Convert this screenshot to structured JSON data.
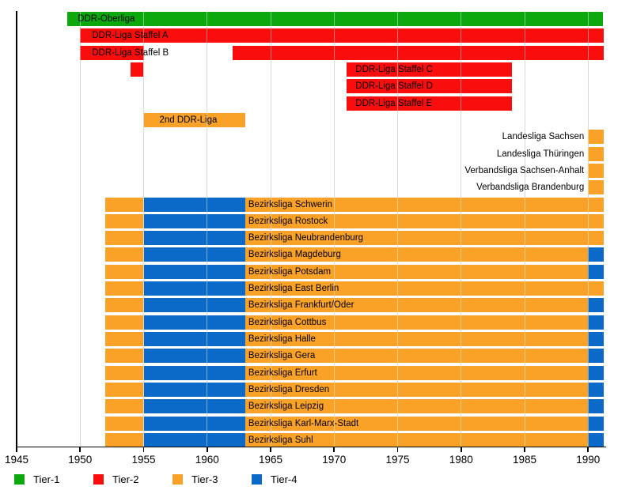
{
  "colors": {
    "tier1": "#0CA80C",
    "tier2": "#F90D0D",
    "tier3": "#F9A227",
    "tier4": "#0B69C8",
    "gridline": "#BBBBBB",
    "gridline_over_bars": "rgba(255,255,255,0.45)",
    "axis": "#000000",
    "text": "#000000"
  },
  "chart_data": {
    "type": "timeline-bar",
    "title": "",
    "x_axis": {
      "min": 1945,
      "max": 1991.3,
      "ticks": [
        1945,
        1950,
        1955,
        1960,
        1965,
        1970,
        1975,
        1980,
        1985,
        1990
      ]
    },
    "grid": "vertical-5yr",
    "rows": [
      {
        "label": "DDR-Oberliga",
        "label_pos": "on-bar",
        "label_segment": 0,
        "label_pad": 13,
        "segments": [
          {
            "from": 1949,
            "to": 1991.2,
            "tier": "tier1"
          }
        ]
      },
      {
        "label": "DDR-Liga Staffel A",
        "label_pos": "on-bar",
        "label_segment": 0,
        "label_pad": 15,
        "segments": [
          {
            "from": 1950,
            "to": 1991.2,
            "tier": "tier2"
          }
        ]
      },
      {
        "label": "DDR-Liga Staffel B",
        "label_pos": "on-bar",
        "label_segment": 0,
        "label_pad": 15,
        "segments": [
          {
            "from": 1950,
            "to": 1955,
            "tier": "tier2"
          },
          {
            "from": 1962,
            "to": 1991.2,
            "tier": "tier2"
          }
        ]
      },
      {
        "label": "DDR-Liga Staffel C",
        "label_pos": "on-bar",
        "label_segment": 1,
        "label_pad": 11,
        "segments": [
          {
            "from": 1954,
            "to": 1955,
            "tier": "tier2"
          },
          {
            "from": 1971,
            "to": 1984,
            "tier": "tier2"
          }
        ]
      },
      {
        "label": "DDR-Liga Staffel D",
        "label_pos": "on-bar",
        "label_segment": 0,
        "label_pad": 11,
        "segments": [
          {
            "from": 1971,
            "to": 1984,
            "tier": "tier2"
          }
        ]
      },
      {
        "label": "DDR-Liga Staffel E",
        "label_pos": "on-bar",
        "label_segment": 0,
        "label_pad": 11,
        "segments": [
          {
            "from": 1971,
            "to": 1984,
            "tier": "tier2"
          }
        ]
      },
      {
        "label": "2nd DDR-Liga",
        "label_pos": "on-bar",
        "label_segment": 0,
        "label_pad": 20,
        "segments": [
          {
            "from": 1955,
            "to": 1963,
            "tier": "tier3"
          }
        ]
      },
      {
        "label": "Landesliga Sachsen",
        "label_pos": "before-bar",
        "label_segment": 0,
        "segments": [
          {
            "from": 1990,
            "to": 1991.2,
            "tier": "tier3"
          }
        ]
      },
      {
        "label": "Landesliga Thüringen",
        "label_pos": "before-bar",
        "label_segment": 0,
        "segments": [
          {
            "from": 1990,
            "to": 1991.2,
            "tier": "tier3"
          }
        ]
      },
      {
        "label": "Verbandsliga Sachsen-Anhalt",
        "label_pos": "before-bar",
        "label_segment": 0,
        "segments": [
          {
            "from": 1990,
            "to": 1991.2,
            "tier": "tier3"
          }
        ]
      },
      {
        "label": "Verbandsliga Brandenburg",
        "label_pos": "before-bar",
        "label_segment": 0,
        "segments": [
          {
            "from": 1990,
            "to": 1991.2,
            "tier": "tier3"
          }
        ]
      },
      {
        "label": "Bezirksliga Schwerin",
        "label_pos": "on-bar",
        "label_segment": 2,
        "label_pad": 4,
        "segments": [
          {
            "from": 1952,
            "to": 1955,
            "tier": "tier3"
          },
          {
            "from": 1955,
            "to": 1963,
            "tier": "tier4"
          },
          {
            "from": 1963,
            "to": 1991.2,
            "tier": "tier3"
          }
        ]
      },
      {
        "label": "Bezirksliga Rostock",
        "label_pos": "on-bar",
        "label_segment": 2,
        "label_pad": 4,
        "segments": [
          {
            "from": 1952,
            "to": 1955,
            "tier": "tier3"
          },
          {
            "from": 1955,
            "to": 1963,
            "tier": "tier4"
          },
          {
            "from": 1963,
            "to": 1991.2,
            "tier": "tier3"
          }
        ]
      },
      {
        "label": "Bezirksliga Neubrandenburg",
        "label_pos": "on-bar",
        "label_segment": 2,
        "label_pad": 4,
        "segments": [
          {
            "from": 1952,
            "to": 1955,
            "tier": "tier3"
          },
          {
            "from": 1955,
            "to": 1963,
            "tier": "tier4"
          },
          {
            "from": 1963,
            "to": 1991.2,
            "tier": "tier3"
          }
        ]
      },
      {
        "label": "Bezirksliga Magdeburg",
        "label_pos": "on-bar",
        "label_segment": 2,
        "label_pad": 4,
        "segments": [
          {
            "from": 1952,
            "to": 1955,
            "tier": "tier3"
          },
          {
            "from": 1955,
            "to": 1963,
            "tier": "tier4"
          },
          {
            "from": 1963,
            "to": 1990,
            "tier": "tier3"
          },
          {
            "from": 1990,
            "to": 1991.2,
            "tier": "tier4"
          }
        ]
      },
      {
        "label": "Bezirksliga Potsdam",
        "label_pos": "on-bar",
        "label_segment": 2,
        "label_pad": 4,
        "segments": [
          {
            "from": 1952,
            "to": 1955,
            "tier": "tier3"
          },
          {
            "from": 1955,
            "to": 1963,
            "tier": "tier4"
          },
          {
            "from": 1963,
            "to": 1990,
            "tier": "tier3"
          },
          {
            "from": 1990,
            "to": 1991.2,
            "tier": "tier4"
          }
        ]
      },
      {
        "label": "Bezirksliga East Berlin",
        "label_pos": "on-bar",
        "label_segment": 2,
        "label_pad": 4,
        "segments": [
          {
            "from": 1952,
            "to": 1955,
            "tier": "tier3"
          },
          {
            "from": 1955,
            "to": 1963,
            "tier": "tier4"
          },
          {
            "from": 1963,
            "to": 1991.2,
            "tier": "tier3"
          }
        ]
      },
      {
        "label": "Bezirksliga Frankfurt/Oder",
        "label_pos": "on-bar",
        "label_segment": 2,
        "label_pad": 4,
        "segments": [
          {
            "from": 1952,
            "to": 1955,
            "tier": "tier3"
          },
          {
            "from": 1955,
            "to": 1963,
            "tier": "tier4"
          },
          {
            "from": 1963,
            "to": 1990,
            "tier": "tier3"
          },
          {
            "from": 1990,
            "to": 1991.2,
            "tier": "tier4"
          }
        ]
      },
      {
        "label": "Bezirksliga Cottbus",
        "label_pos": "on-bar",
        "label_segment": 2,
        "label_pad": 4,
        "segments": [
          {
            "from": 1952,
            "to": 1955,
            "tier": "tier3"
          },
          {
            "from": 1955,
            "to": 1963,
            "tier": "tier4"
          },
          {
            "from": 1963,
            "to": 1990,
            "tier": "tier3"
          },
          {
            "from": 1990,
            "to": 1991.2,
            "tier": "tier4"
          }
        ]
      },
      {
        "label": "Bezirksliga Halle",
        "label_pos": "on-bar",
        "label_segment": 2,
        "label_pad": 4,
        "segments": [
          {
            "from": 1952,
            "to": 1955,
            "tier": "tier3"
          },
          {
            "from": 1955,
            "to": 1963,
            "tier": "tier4"
          },
          {
            "from": 1963,
            "to": 1990,
            "tier": "tier3"
          },
          {
            "from": 1990,
            "to": 1991.2,
            "tier": "tier4"
          }
        ]
      },
      {
        "label": "Bezirksliga Gera",
        "label_pos": "on-bar",
        "label_segment": 2,
        "label_pad": 4,
        "segments": [
          {
            "from": 1952,
            "to": 1955,
            "tier": "tier3"
          },
          {
            "from": 1955,
            "to": 1963,
            "tier": "tier4"
          },
          {
            "from": 1963,
            "to": 1990,
            "tier": "tier3"
          },
          {
            "from": 1990,
            "to": 1991.2,
            "tier": "tier4"
          }
        ]
      },
      {
        "label": "Bezirksliga Erfurt",
        "label_pos": "on-bar",
        "label_segment": 2,
        "label_pad": 4,
        "segments": [
          {
            "from": 1952,
            "to": 1955,
            "tier": "tier3"
          },
          {
            "from": 1955,
            "to": 1963,
            "tier": "tier4"
          },
          {
            "from": 1963,
            "to": 1990,
            "tier": "tier3"
          },
          {
            "from": 1990,
            "to": 1991.2,
            "tier": "tier4"
          }
        ]
      },
      {
        "label": "Bezirksliga Dresden",
        "label_pos": "on-bar",
        "label_segment": 2,
        "label_pad": 4,
        "segments": [
          {
            "from": 1952,
            "to": 1955,
            "tier": "tier3"
          },
          {
            "from": 1955,
            "to": 1963,
            "tier": "tier4"
          },
          {
            "from": 1963,
            "to": 1990,
            "tier": "tier3"
          },
          {
            "from": 1990,
            "to": 1991.2,
            "tier": "tier4"
          }
        ]
      },
      {
        "label": "Bezirksliga Leipzig",
        "label_pos": "on-bar",
        "label_segment": 2,
        "label_pad": 4,
        "segments": [
          {
            "from": 1952,
            "to": 1955,
            "tier": "tier3"
          },
          {
            "from": 1955,
            "to": 1963,
            "tier": "tier4"
          },
          {
            "from": 1963,
            "to": 1990,
            "tier": "tier3"
          },
          {
            "from": 1990,
            "to": 1991.2,
            "tier": "tier4"
          }
        ]
      },
      {
        "label": "Bezirksliga Karl-Marx-Stadt",
        "label_pos": "on-bar",
        "label_segment": 2,
        "label_pad": 4,
        "segments": [
          {
            "from": 1952,
            "to": 1955,
            "tier": "tier3"
          },
          {
            "from": 1955,
            "to": 1963,
            "tier": "tier4"
          },
          {
            "from": 1963,
            "to": 1990,
            "tier": "tier3"
          },
          {
            "from": 1990,
            "to": 1991.2,
            "tier": "tier4"
          }
        ]
      },
      {
        "label": "Bezirksliga Suhl",
        "label_pos": "on-bar",
        "label_segment": 2,
        "label_pad": 4,
        "segments": [
          {
            "from": 1952,
            "to": 1955,
            "tier": "tier3"
          },
          {
            "from": 1955,
            "to": 1963,
            "tier": "tier4"
          },
          {
            "from": 1963,
            "to": 1990,
            "tier": "tier3"
          },
          {
            "from": 1990,
            "to": 1991.2,
            "tier": "tier4"
          }
        ]
      }
    ],
    "legend": {
      "position": "bottom-left",
      "items": [
        {
          "label": "Tier-1",
          "tier": "tier1"
        },
        {
          "label": "Tier-2",
          "tier": "tier2"
        },
        {
          "label": "Tier-3",
          "tier": "tier3"
        },
        {
          "label": "Tier-4",
          "tier": "tier4"
        }
      ]
    }
  }
}
